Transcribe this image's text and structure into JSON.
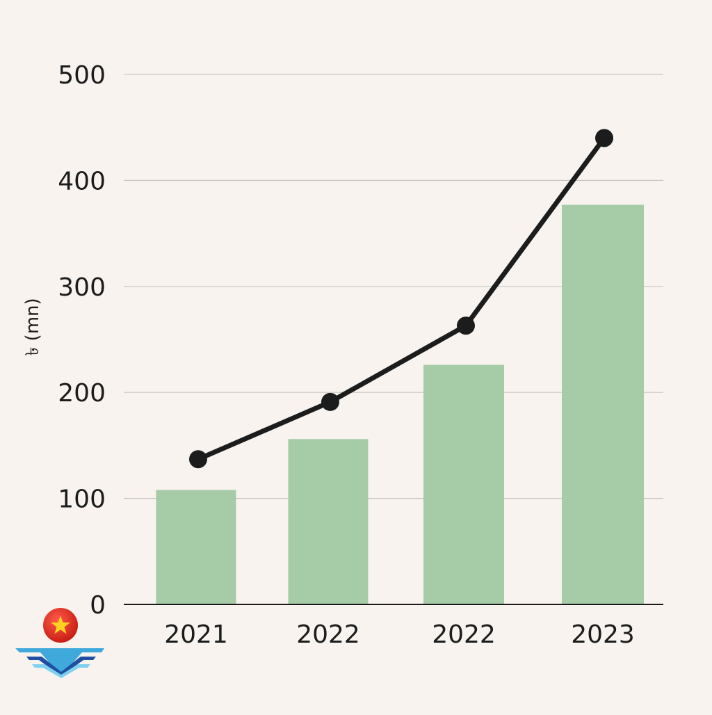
{
  "chart_data": {
    "type": "bar",
    "title": "",
    "xlabel": "",
    "ylabel": "৳ (mn)",
    "ylim": [
      0,
      500
    ],
    "yticks": [
      0,
      100,
      200,
      300,
      400,
      500
    ],
    "grid": true,
    "categories": [
      "2021",
      "2022",
      "2022",
      "2023"
    ],
    "series": [
      {
        "name": "bars",
        "type": "bar",
        "values": [
          108,
          156,
          226,
          377
        ]
      },
      {
        "name": "line",
        "type": "line",
        "values": [
          137,
          191,
          263,
          440
        ]
      }
    ]
  },
  "colors": {
    "background": "#f8f3ee",
    "bar": "#a6cba7",
    "line": "#1c1c1c",
    "grid": "#c9c6c2",
    "axis": "#1c1c1c"
  },
  "logo": {
    "icon": "vietnam-flag-wing-logo-icon"
  }
}
